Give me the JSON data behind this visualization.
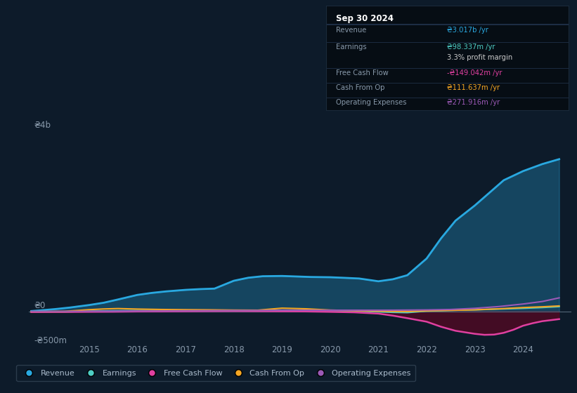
{
  "background_color": "#0d1b2a",
  "plot_bg_color": "#0d1b2a",
  "grid_color": "#1e3048",
  "title_text": "Sep 30 2024",
  "y_label_4b": "₴4b",
  "y_label_0": "₴0",
  "y_label_neg500": "-₴500m",
  "x_labels": [
    "2015",
    "2016",
    "2017",
    "2018",
    "2019",
    "2020",
    "2021",
    "2022",
    "2023",
    "2024"
  ],
  "legend_items": [
    "Revenue",
    "Earnings",
    "Free Cash Flow",
    "Cash From Op",
    "Operating Expenses"
  ],
  "legend_colors": [
    "#29a8e0",
    "#4ecdc4",
    "#e040a0",
    "#f5a623",
    "#9b59b6"
  ],
  "info_rows": [
    {
      "label": "Revenue",
      "value": "₴3.017b /yr",
      "value_color": "#29a8e0"
    },
    {
      "label": "Earnings",
      "value": "₴98.337m /yr",
      "value_color": "#4ecdc4"
    },
    {
      "label": "",
      "value": "3.3% profit margin",
      "value_color": "#cccccc"
    },
    {
      "label": "Free Cash Flow",
      "value": "-₴149.042m /yr",
      "value_color": "#e040a0"
    },
    {
      "label": "Cash From Op",
      "value": "₴111.637m /yr",
      "value_color": "#f5a623"
    },
    {
      "label": "Operating Expenses",
      "value": "₴271.916m /yr",
      "value_color": "#9b59b6"
    }
  ]
}
